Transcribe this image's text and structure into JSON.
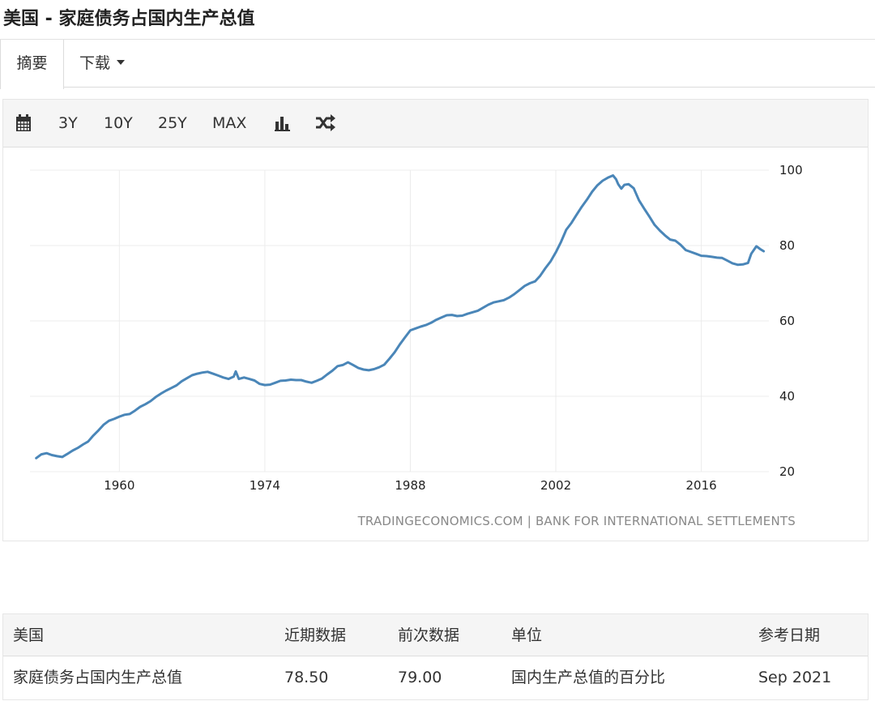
{
  "page": {
    "title": "美国 - 家庭债务占国内生产总值"
  },
  "tabs": [
    {
      "label": "摘要"
    },
    {
      "label": "下载"
    }
  ],
  "toolbar": {
    "buttons": [
      "3Y",
      "10Y",
      "25Y",
      "MAX"
    ],
    "icons": [
      "calendar-icon",
      "bar-chart-icon",
      "shuffle-icon"
    ]
  },
  "chart_data": {
    "type": "line",
    "title": "",
    "xlabel": "",
    "ylabel": "",
    "x_ticks": [
      "1960",
      "1974",
      "1988",
      "2002",
      "2016"
    ],
    "y_ticks": [
      "20",
      "40",
      "60",
      "80",
      "100"
    ],
    "xlim": [
      1951.4,
      2022.5
    ],
    "ylim": [
      20,
      100
    ],
    "grid": true,
    "color": "#4a86b8",
    "source": "TRADINGECONOMICS.COM  |  BANK FOR INTERNATIONAL SETTLEMENTS",
    "series": [
      {
        "points": [
          [
            1952.0,
            23.6
          ],
          [
            1952.5,
            24.6
          ],
          [
            1953.0,
            24.9
          ],
          [
            1953.5,
            24.4
          ],
          [
            1954.0,
            24.1
          ],
          [
            1954.5,
            23.9
          ],
          [
            1955.0,
            24.7
          ],
          [
            1955.5,
            25.6
          ],
          [
            1956.0,
            26.3
          ],
          [
            1956.5,
            27.2
          ],
          [
            1957.0,
            28.0
          ],
          [
            1957.5,
            29.6
          ],
          [
            1958.0,
            31.0
          ],
          [
            1958.5,
            32.5
          ],
          [
            1959.0,
            33.5
          ],
          [
            1959.5,
            34.0
          ],
          [
            1960.0,
            34.6
          ],
          [
            1960.5,
            35.1
          ],
          [
            1961.0,
            35.3
          ],
          [
            1961.5,
            36.2
          ],
          [
            1962.0,
            37.2
          ],
          [
            1962.5,
            37.9
          ],
          [
            1963.0,
            38.7
          ],
          [
            1963.5,
            39.8
          ],
          [
            1964.0,
            40.7
          ],
          [
            1964.5,
            41.5
          ],
          [
            1965.0,
            42.2
          ],
          [
            1965.5,
            42.9
          ],
          [
            1966.0,
            44.0
          ],
          [
            1966.5,
            44.8
          ],
          [
            1967.0,
            45.6
          ],
          [
            1967.5,
            46.0
          ],
          [
            1968.0,
            46.3
          ],
          [
            1968.5,
            46.5
          ],
          [
            1969.0,
            46.0
          ],
          [
            1969.5,
            45.5
          ],
          [
            1970.0,
            45.0
          ],
          [
            1970.5,
            44.6
          ],
          [
            1971.0,
            45.2
          ],
          [
            1971.2,
            46.6
          ],
          [
            1971.5,
            44.6
          ],
          [
            1972.0,
            45.0
          ],
          [
            1972.5,
            44.6
          ],
          [
            1973.0,
            44.2
          ],
          [
            1973.5,
            43.3
          ],
          [
            1974.0,
            43.0
          ],
          [
            1974.5,
            43.1
          ],
          [
            1975.0,
            43.6
          ],
          [
            1975.5,
            44.1
          ],
          [
            1976.0,
            44.2
          ],
          [
            1976.5,
            44.4
          ],
          [
            1977.0,
            44.3
          ],
          [
            1977.5,
            44.3
          ],
          [
            1978.0,
            43.9
          ],
          [
            1978.5,
            43.6
          ],
          [
            1979.0,
            44.1
          ],
          [
            1979.5,
            44.7
          ],
          [
            1980.0,
            45.8
          ],
          [
            1980.5,
            46.8
          ],
          [
            1981.0,
            48.0
          ],
          [
            1981.5,
            48.3
          ],
          [
            1982.0,
            49.0
          ],
          [
            1982.5,
            48.3
          ],
          [
            1983.0,
            47.5
          ],
          [
            1983.5,
            47.1
          ],
          [
            1984.0,
            46.9
          ],
          [
            1984.5,
            47.2
          ],
          [
            1985.0,
            47.7
          ],
          [
            1985.5,
            48.4
          ],
          [
            1986.0,
            50.0
          ],
          [
            1986.5,
            51.7
          ],
          [
            1987.0,
            53.8
          ],
          [
            1987.5,
            55.7
          ],
          [
            1988.0,
            57.5
          ],
          [
            1988.5,
            58.0
          ],
          [
            1989.0,
            58.5
          ],
          [
            1989.5,
            58.9
          ],
          [
            1990.0,
            59.5
          ],
          [
            1990.5,
            60.3
          ],
          [
            1991.0,
            60.9
          ],
          [
            1991.5,
            61.5
          ],
          [
            1992.0,
            61.6
          ],
          [
            1992.5,
            61.3
          ],
          [
            1993.0,
            61.4
          ],
          [
            1993.5,
            61.9
          ],
          [
            1994.0,
            62.3
          ],
          [
            1994.5,
            62.7
          ],
          [
            1995.0,
            63.5
          ],
          [
            1995.5,
            64.3
          ],
          [
            1996.0,
            64.9
          ],
          [
            1996.5,
            65.2
          ],
          [
            1997.0,
            65.5
          ],
          [
            1997.5,
            66.2
          ],
          [
            1998.0,
            67.1
          ],
          [
            1998.5,
            68.2
          ],
          [
            1999.0,
            69.3
          ],
          [
            1999.5,
            70.0
          ],
          [
            2000.0,
            70.5
          ],
          [
            2000.5,
            72.0
          ],
          [
            2001.0,
            74.0
          ],
          [
            2001.5,
            75.8
          ],
          [
            2002.0,
            78.2
          ],
          [
            2002.5,
            81.0
          ],
          [
            2003.0,
            84.2
          ],
          [
            2003.5,
            86.0
          ],
          [
            2004.0,
            88.2
          ],
          [
            2004.5,
            90.3
          ],
          [
            2005.0,
            92.2
          ],
          [
            2005.5,
            94.3
          ],
          [
            2006.0,
            96.0
          ],
          [
            2006.5,
            97.2
          ],
          [
            2007.0,
            98.0
          ],
          [
            2007.5,
            98.6
          ],
          [
            2007.8,
            97.6
          ],
          [
            2008.0,
            96.3
          ],
          [
            2008.3,
            95.1
          ],
          [
            2008.6,
            96.1
          ],
          [
            2009.0,
            96.3
          ],
          [
            2009.5,
            95.2
          ],
          [
            2010.0,
            92.0
          ],
          [
            2010.5,
            89.8
          ],
          [
            2011.0,
            87.7
          ],
          [
            2011.5,
            85.5
          ],
          [
            2012.0,
            84.0
          ],
          [
            2012.5,
            82.7
          ],
          [
            2013.0,
            81.6
          ],
          [
            2013.5,
            81.3
          ],
          [
            2014.0,
            80.2
          ],
          [
            2014.5,
            78.8
          ],
          [
            2015.0,
            78.3
          ],
          [
            2015.5,
            77.8
          ],
          [
            2016.0,
            77.3
          ],
          [
            2016.5,
            77.2
          ],
          [
            2017.0,
            77.0
          ],
          [
            2017.5,
            76.8
          ],
          [
            2018.0,
            76.7
          ],
          [
            2018.5,
            76.0
          ],
          [
            2019.0,
            75.3
          ],
          [
            2019.5,
            74.9
          ],
          [
            2020.0,
            75.0
          ],
          [
            2020.5,
            75.4
          ],
          [
            2020.8,
            77.8
          ],
          [
            2021.3,
            79.8
          ],
          [
            2021.7,
            79.0
          ],
          [
            2022.0,
            78.5
          ]
        ]
      }
    ]
  },
  "table": {
    "headers": [
      "美国",
      "近期数据",
      "前次数据",
      "单位",
      "参考日期"
    ],
    "rows": [
      [
        "家庭债务占国内生产总值",
        "78.50",
        "79.00",
        "国内生产总值的百分比",
        "Sep 2021"
      ]
    ]
  }
}
